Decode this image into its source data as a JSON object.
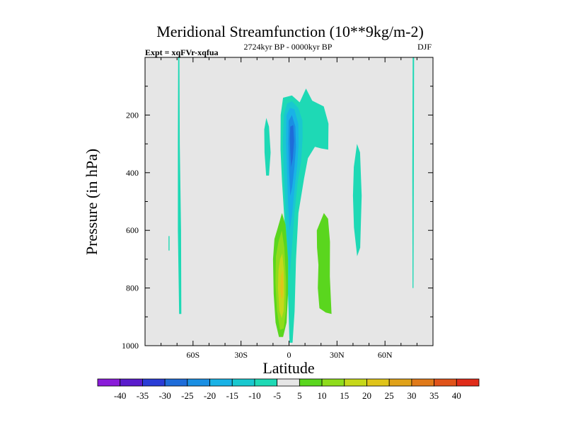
{
  "chart_data": {
    "type": "contour",
    "title": "Meridional Streamfunction (10**9kg/m-2)",
    "left_label": "Expt = xqFVr-xqfua",
    "center_label": "2724kyr BP - 0000kyr BP",
    "right_label": "DJF",
    "xlabel": "Latitude",
    "ylabel": "Pressure (in hPa)",
    "xlim": [
      -90,
      90
    ],
    "ylim": [
      1000,
      0
    ],
    "xticks": [
      {
        "value": -60,
        "label": "60S"
      },
      {
        "value": -30,
        "label": "30S"
      },
      {
        "value": 0,
        "label": "0"
      },
      {
        "value": 30,
        "label": "30N"
      },
      {
        "value": 60,
        "label": "60N"
      }
    ],
    "yticks": [
      {
        "value": 200,
        "label": "200"
      },
      {
        "value": 400,
        "label": "400"
      },
      {
        "value": 600,
        "label": "600"
      },
      {
        "value": 800,
        "label": "800"
      },
      {
        "value": 1000,
        "label": "1000"
      }
    ],
    "background_color": "#e6e6e6",
    "colorbar": {
      "labels": [
        "-40",
        "-35",
        "-30",
        "-25",
        "-20",
        "-15",
        "-10",
        "-5",
        "5",
        "10",
        "15",
        "20",
        "25",
        "30",
        "35",
        "40"
      ],
      "colors": [
        "#8a1cd9",
        "#5a1ccc",
        "#2a3cd6",
        "#1e6cd9",
        "#1a8fe3",
        "#19b2e6",
        "#19c8cf",
        "#1ed9b5",
        "#e6e6e6",
        "#5ad61e",
        "#8fdc1c",
        "#c6d81a",
        "#e0c41a",
        "#e0a21a",
        "#e07a1a",
        "#e0531a",
        "#e02c1a"
      ]
    },
    "regions": [
      {
        "name": "southern-high-latitude-strip",
        "value": -7,
        "color": "#1ed9b5",
        "points": [
          [
            -69.3,
            0
          ],
          [
            -68.5,
            0
          ],
          [
            -68.3,
            300
          ],
          [
            -67.5,
            600
          ],
          [
            -67.3,
            890
          ],
          [
            -68.7,
            890
          ],
          [
            -69.5,
            600
          ],
          [
            -69.5,
            300
          ]
        ]
      },
      {
        "name": "southern-small-sliver",
        "value": -7,
        "color": "#1ed9b5",
        "points": [
          [
            -75.3,
            620
          ],
          [
            -74.7,
            620
          ],
          [
            -74.7,
            670
          ],
          [
            -75.3,
            670
          ]
        ]
      },
      {
        "name": "northern-high-latitude-strip",
        "value": -7,
        "color": "#1ed9b5",
        "points": [
          [
            77.3,
            0
          ],
          [
            78.2,
            0
          ],
          [
            78.0,
            400
          ],
          [
            77.8,
            800
          ],
          [
            77.2,
            800
          ],
          [
            77.1,
            400
          ]
        ]
      },
      {
        "name": "small-negative-cell-30s",
        "value": -7,
        "color": "#1ed9b5",
        "points": [
          [
            -15.5,
            250
          ],
          [
            -14.2,
            210
          ],
          [
            -12.5,
            240
          ],
          [
            -11.5,
            330
          ],
          [
            -12.5,
            410
          ],
          [
            -14.3,
            410
          ],
          [
            -15.3,
            330
          ]
        ]
      },
      {
        "name": "negative-cell-45n",
        "value": -7,
        "color": "#1ed9b5",
        "points": [
          [
            40.5,
            380
          ],
          [
            42.5,
            300
          ],
          [
            44.4,
            330
          ],
          [
            45.4,
            480
          ],
          [
            44.5,
            660
          ],
          [
            42.6,
            690
          ],
          [
            40.6,
            590
          ],
          [
            40,
            480
          ]
        ]
      },
      {
        "name": "equatorial-upper-cell-outer",
        "value": -7,
        "color": "#1ed9b5",
        "points": [
          [
            -5.2,
            200
          ],
          [
            -3.7,
            140
          ],
          [
            1.8,
            132
          ],
          [
            6.7,
            156
          ],
          [
            10.6,
            108
          ],
          [
            14.5,
            150
          ],
          [
            21.7,
            170
          ],
          [
            24.7,
            230
          ],
          [
            24.5,
            320
          ],
          [
            20.2,
            316
          ],
          [
            16.2,
            310
          ],
          [
            11.8,
            350
          ],
          [
            9.4,
            420
          ],
          [
            5.9,
            540
          ],
          [
            4.4,
            700
          ],
          [
            3.5,
            880
          ],
          [
            2.2,
            990
          ],
          [
            0.3,
            990
          ],
          [
            -0.4,
            860
          ],
          [
            -1.4,
            700
          ],
          [
            -2.9,
            560
          ],
          [
            -4.4,
            430
          ],
          [
            -5.3,
            320
          ]
        ]
      },
      {
        "name": "equatorial-upper-cell-level-2",
        "value": -12,
        "color": "#19c8cf",
        "points": [
          [
            -3.2,
            200
          ],
          [
            -1.2,
            160
          ],
          [
            1.8,
            152
          ],
          [
            5.8,
            175
          ],
          [
            8.4,
            220
          ],
          [
            8.5,
            280
          ],
          [
            7.6,
            360
          ],
          [
            5.5,
            430
          ],
          [
            3.4,
            540
          ],
          [
            1.8,
            660
          ],
          [
            0.4,
            760
          ],
          [
            -1.4,
            620
          ],
          [
            -2.4,
            500
          ],
          [
            -3.3,
            390
          ],
          [
            -3.8,
            290
          ]
        ]
      },
      {
        "name": "equatorial-upper-cell-level-3",
        "value": -17,
        "color": "#19b2e6",
        "points": [
          [
            -1.6,
            200
          ],
          [
            0.6,
            175
          ],
          [
            3.3,
            180
          ],
          [
            5.8,
            230
          ],
          [
            6,
            300
          ],
          [
            5.2,
            370
          ],
          [
            3.6,
            450
          ],
          [
            1.8,
            550
          ],
          [
            0.4,
            600
          ],
          [
            -0.6,
            500
          ],
          [
            -1.2,
            400
          ],
          [
            -1.8,
            300
          ]
        ]
      },
      {
        "name": "equatorial-upper-cell-level-4",
        "value": -22,
        "color": "#1a8fe3",
        "points": [
          [
            -0.2,
            220
          ],
          [
            1.8,
            200
          ],
          [
            4.0,
            240
          ],
          [
            4.4,
            310
          ],
          [
            3.4,
            380
          ],
          [
            2.0,
            450
          ],
          [
            0.8,
            480
          ],
          [
            0.1,
            400
          ],
          [
            -0.4,
            300
          ]
        ]
      },
      {
        "name": "equatorial-upper-cell-core",
        "value": -27,
        "color": "#1e6cd9",
        "points": [
          [
            0.8,
            240
          ],
          [
            2.6,
            235
          ],
          [
            3.2,
            290
          ],
          [
            2.4,
            350
          ],
          [
            1.3,
            380
          ],
          [
            0.8,
            330
          ],
          [
            0.5,
            280
          ]
        ]
      },
      {
        "name": "positive-cell-south-outer",
        "value": 7,
        "color": "#5ad61e",
        "points": [
          [
            -7.3,
            596
          ],
          [
            -4.4,
            540
          ],
          [
            -2.2,
            580
          ],
          [
            -0.6,
            700
          ],
          [
            -0.6,
            820
          ],
          [
            -1.5,
            920
          ],
          [
            -3.7,
            970
          ],
          [
            -6.3,
            970
          ],
          [
            -8.4,
            920
          ],
          [
            -9.6,
            820
          ],
          [
            -10.0,
            700
          ],
          [
            -9.1,
            630
          ]
        ]
      },
      {
        "name": "positive-cell-south-level-2",
        "value": 12,
        "color": "#8fdc1c",
        "points": [
          [
            -6.6,
            640
          ],
          [
            -4.5,
            600
          ],
          [
            -2.9,
            660
          ],
          [
            -1.8,
            780
          ],
          [
            -2.0,
            880
          ],
          [
            -3.3,
            940
          ],
          [
            -5.6,
            945
          ],
          [
            -7.5,
            880
          ],
          [
            -8.5,
            780
          ],
          [
            -8.2,
            690
          ]
        ]
      },
      {
        "name": "positive-cell-south-level-3",
        "value": 17,
        "color": "#c6d81a",
        "points": [
          [
            -5.6,
            700
          ],
          [
            -4.2,
            680
          ],
          [
            -3.2,
            740
          ],
          [
            -2.9,
            820
          ],
          [
            -3.4,
            880
          ],
          [
            -4.6,
            905
          ],
          [
            -6.0,
            880
          ],
          [
            -6.9,
            800
          ],
          [
            -6.6,
            740
          ]
        ]
      },
      {
        "name": "positive-cell-south-core",
        "value": 22,
        "color": "#e0c41a",
        "points": [
          [
            -5.0,
            760
          ],
          [
            -4.0,
            740
          ],
          [
            -3.6,
            790
          ],
          [
            -3.9,
            830
          ],
          [
            -4.8,
            840
          ],
          [
            -5.5,
            800
          ]
        ]
      },
      {
        "name": "positive-cell-north",
        "value": 7,
        "color": "#5ad61e",
        "points": [
          [
            17.4,
            600
          ],
          [
            21.8,
            540
          ],
          [
            24.4,
            560
          ],
          [
            25.6,
            640
          ],
          [
            25.5,
            760
          ],
          [
            26.6,
            890
          ],
          [
            23.0,
            885
          ],
          [
            19.0,
            870
          ],
          [
            18.0,
            800
          ],
          [
            18.4,
            720
          ],
          [
            17.5,
            660
          ]
        ]
      }
    ]
  }
}
